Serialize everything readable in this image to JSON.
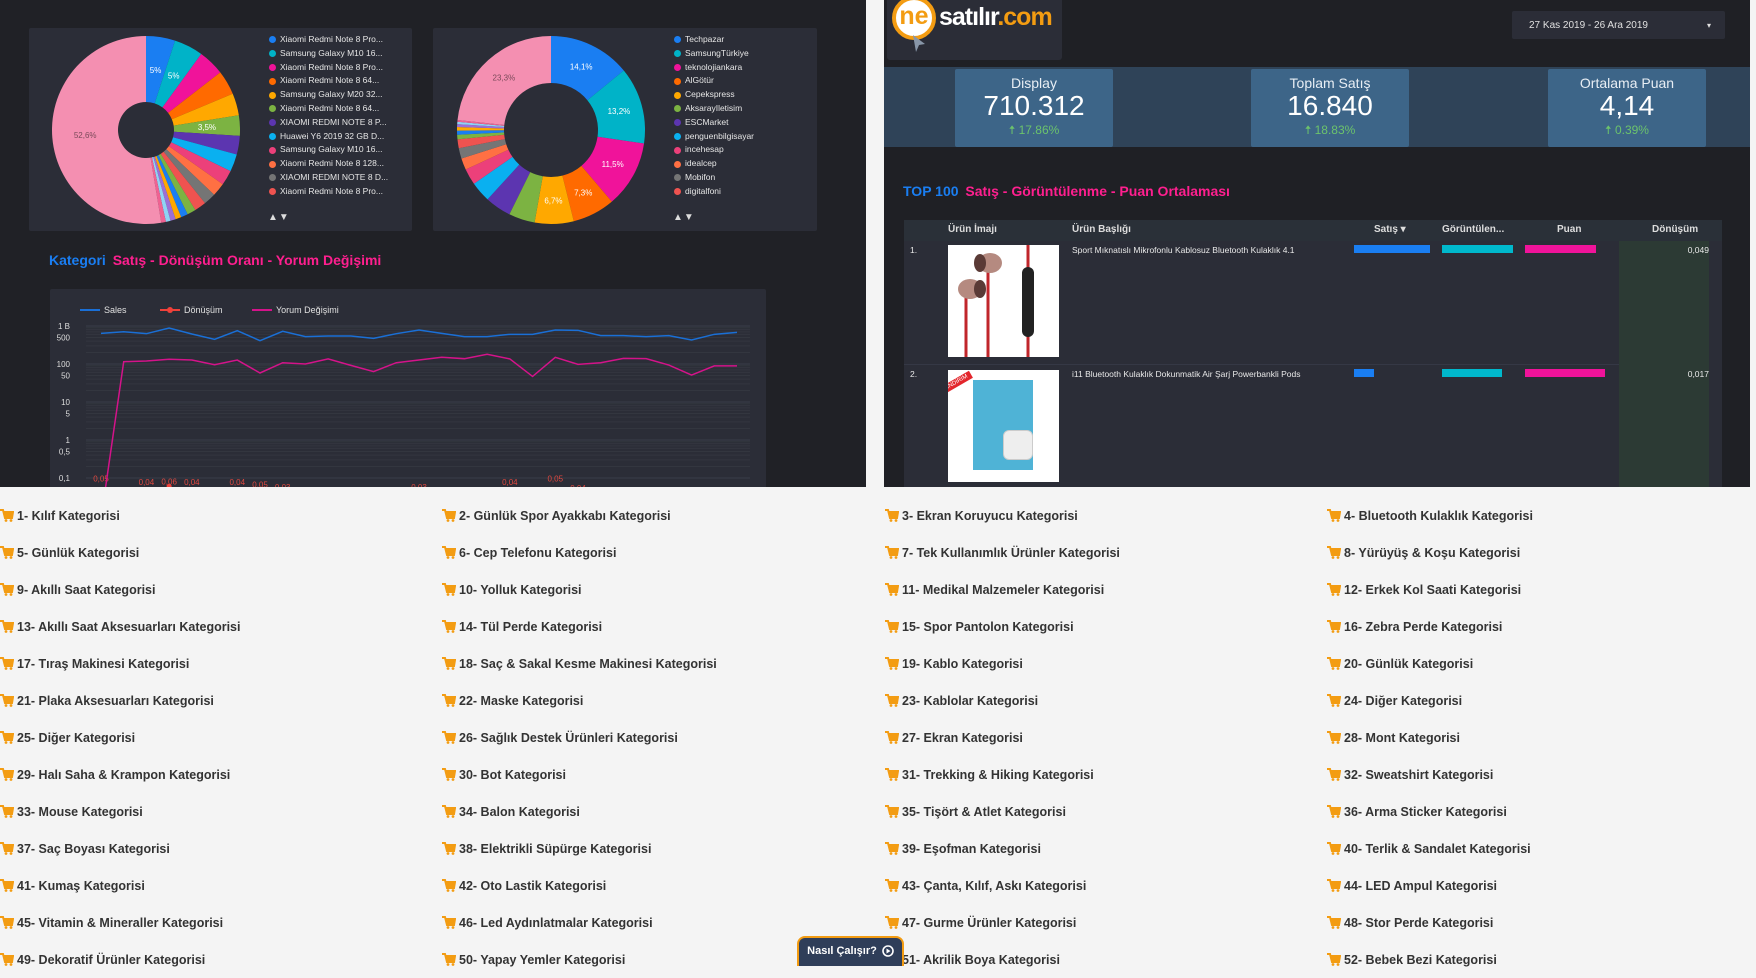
{
  "colors": {
    "blue": "#1a7ef2",
    "pink_title": "#ff1f8f",
    "positive": "#6cc36c",
    "cart": "#f39c12"
  },
  "pie1": {
    "legend": [
      "Xiaomi Redmi Note 8 Pro...",
      "Samsung Galaxy M10 16...",
      "Xiaomi Redmi Note 8 Pro...",
      "Xiaomi Redmi Note 8 64...",
      "Samsung Galaxy M20 32...",
      "Xiaomi Redmi Note 8 64...",
      "XIAOMI REDMI NOTE 8 P...",
      "Huawei Y6 2019 32 GB D...",
      "Samsung Galaxy M10 16...",
      "Xiaomi Redmi Note 8 128...",
      "XIAOMI REDMI NOTE 8 D...",
      "Xiaomi Redmi Note 8 Pro..."
    ],
    "pager": "▲▼"
  },
  "pie2": {
    "legend": [
      "Techpazar",
      "SamsungTürkiye",
      "teknolojiankara",
      "AlGötür",
      "Cepekspress",
      "AksarayIletisim",
      "ESCMarket",
      "penguenbilgisayar",
      "incehesap",
      "idealcep",
      "Mobifon",
      "digitalfoni"
    ],
    "pager": "▲▼"
  },
  "chart_data": [
    {
      "type": "pie",
      "donut": true,
      "values": [
        5,
        5,
        4.5,
        4.2,
        3.8,
        3.5,
        3.2,
        3.0,
        2.6,
        2.3,
        2.1,
        2.0,
        1.5,
        1.2,
        1.0,
        0.9,
        0.8,
        0.8,
        52.6
      ],
      "labels": [
        "5%",
        "5%",
        "",
        "",
        "",
        "3,5%",
        "",
        "",
        "",
        "",
        "",
        "",
        "",
        "",
        "",
        "",
        "",
        "",
        "52,6%"
      ],
      "colors": [
        "#1a7ef2",
        "#00b3c8",
        "#f0139a",
        "#ff6a00",
        "#ffa800",
        "#7cb342",
        "#5c35b0",
        "#0ab0f0",
        "#ec407a",
        "#ff7043",
        "#757575",
        "#ef5350",
        "#7cb342",
        "#1a7ef2",
        "#ffa800",
        "#9c6fd6",
        "#8fd3f4",
        "#f06292",
        "#f48fb1"
      ]
    },
    {
      "type": "pie",
      "donut": true,
      "values": [
        14.1,
        13.2,
        11.5,
        7.3,
        6.7,
        4.5,
        4.5,
        3.5,
        2.8,
        2.0,
        1.8,
        1.5,
        0.8,
        0.7,
        0.6,
        0.5,
        0.4,
        0.3,
        23.3
      ],
      "labels": [
        "14,1%",
        "13,2%",
        "11,5%",
        "7,3%",
        "6,7%",
        "",
        "",
        "",
        "",
        "",
        "",
        "",
        "",
        "",
        "",
        "",
        "",
        "",
        "23,3%"
      ],
      "colors": [
        "#1a7ef2",
        "#00b3c8",
        "#f0139a",
        "#ff6a00",
        "#ffa800",
        "#7cb342",
        "#5c35b0",
        "#0ab0f0",
        "#ec407a",
        "#ff7043",
        "#757575",
        "#ef5350",
        "#7cb342",
        "#1a7ef2",
        "#ffa800",
        "#9c6fd6",
        "#8fd3f4",
        "#f06292",
        "#f48fb1"
      ]
    },
    {
      "type": "line",
      "yscale": "log",
      "yticks": [
        "1 B",
        "500",
        "100",
        "50",
        "10",
        "5",
        "1",
        "0,5",
        "0,1"
      ],
      "ytick_values": [
        1000,
        500,
        100,
        50,
        10,
        5,
        1,
        0.5,
        0.1
      ],
      "series": [
        {
          "name": "Sales",
          "color": "#1a6fd6",
          "values": [
            641,
            708,
            628,
            886,
            616,
            446,
            754,
            411,
            724,
            524,
            546,
            546,
            474,
            628,
            785,
            641,
            524,
            524,
            604,
            604,
            785,
            770,
            557,
            557,
            524,
            557,
            428,
            604,
            681
          ]
        },
        {
          "name": "Dönüşüm",
          "color": "#f0413a",
          "values": [
            0.05,
            0.03,
            0.04,
            0.06,
            0.04,
            0.03,
            0.04,
            0.05,
            0.03,
            null,
            null,
            null,
            null,
            null,
            0.03,
            0.02,
            null,
            0.03,
            0.04,
            0.03,
            0.05,
            0.04,
            null,
            0.02,
            0.02,
            null,
            null,
            null,
            null
          ],
          "labels": [
            "0,05",
            "0,03",
            "0,04",
            "0,06",
            "0,04",
            "0,03",
            "0,04",
            "0,05",
            "0,03",
            "",
            "",
            "",
            "",
            "",
            "0,03",
            "0,02",
            "",
            "0,03",
            "0,04",
            "0,03",
            "0,05",
            "0,04",
            "",
            "0,02",
            "0,02",
            "",
            "",
            "",
            ""
          ]
        },
        {
          "name": "Yorum Değişimi",
          "color": "#d4138a",
          "values": [
            0,
            115,
            120,
            133,
            127,
            96,
            127,
            58,
            108,
            100,
            136,
            92,
            63,
            108,
            127,
            150,
            138,
            180,
            136,
            47,
            150,
            98,
            108,
            141,
            138,
            94,
            51,
            89,
            89
          ]
        }
      ]
    }
  ],
  "left": {
    "title_a": "Kategori",
    "title_b": "Satış - Dönüşüm Oranı - Yorum Değişimi"
  },
  "logo": {
    "ne": "ne",
    "satilir": "satılır",
    "com": ".com"
  },
  "date_range": {
    "value": "27 Kas 2019 - 26 Ara 2019",
    "caret": "▾"
  },
  "kpis": [
    {
      "label": "Display",
      "value": "710.312",
      "change": "17.86%"
    },
    {
      "label": "Toplam Satış",
      "value": "16.840",
      "change": "18.83%"
    },
    {
      "label": "Ortalama Puan",
      "value": "4,14",
      "change": "0.39%"
    }
  ],
  "top": {
    "title_a": "TOP 100",
    "title_b": "Satış - Görüntülenme - Puan Ortalaması"
  },
  "table": {
    "headers": {
      "image": "Ürün İmajı",
      "title": "Ürün Başlığı",
      "sales": "Satış ▾",
      "views": "Görüntülen...",
      "rating": "Puan",
      "conv": "Dönüşüm"
    },
    "rows": [
      {
        "rank": "1.",
        "title": "Sport Mıknatıslı Mikrofonlu Kablosuz Bluetooth Kulaklık 4.1",
        "sales_bar": 1.0,
        "views_bar": 0.89,
        "rating_bar": 0.89,
        "conv": "0,049"
      },
      {
        "rank": "2.",
        "title": "i11 Bluetooth Kulaklık Dokunmatik Air Şarj Powerbankli Pods",
        "sales_bar": 0.26,
        "views_bar": 0.75,
        "rating_bar": 1.0,
        "conv": "0,017",
        "badge": "İNDİRİM"
      }
    ]
  },
  "categories": [
    "1- Kılıf Kategorisi",
    "2- Günlük Spor Ayakkabı Kategorisi",
    "3- Ekran Koruyucu Kategorisi",
    "4- Bluetooth Kulaklık Kategorisi",
    "5- Günlük Kategorisi",
    "6- Cep Telefonu Kategorisi",
    "7- Tek Kullanımlık Ürünler Kategorisi",
    "8- Yürüyüş & Koşu Kategorisi",
    "9- Akıllı Saat Kategorisi",
    "10- Yolluk Kategorisi",
    "11- Medikal Malzemeler Kategorisi",
    "12- Erkek Kol Saati Kategorisi",
    "13- Akıllı Saat Aksesuarları Kategorisi",
    "14- Tül Perde Kategorisi",
    "15- Spor Pantolon Kategorisi",
    "16- Zebra Perde Kategorisi",
    "17- Tıraş Makinesi Kategorisi",
    "18- Saç & Sakal Kesme Makinesi Kategorisi",
    "19- Kablo Kategorisi",
    "20- Günlük Kategorisi",
    "21- Plaka Aksesuarları Kategorisi",
    "22- Maske Kategorisi",
    "23- Kablolar Kategorisi",
    "24- Diğer Kategorisi",
    "25- Diğer Kategorisi",
    "26- Sağlık Destek Ürünleri Kategorisi",
    "27- Ekran Kategorisi",
    "28- Mont Kategorisi",
    "29- Halı Saha & Krampon Kategorisi",
    "30- Bot Kategorisi",
    "31- Trekking & Hiking Kategorisi",
    "32- Sweatshirt Kategorisi",
    "33- Mouse Kategorisi",
    "34- Balon Kategorisi",
    "35- Tişört & Atlet Kategorisi",
    "36- Arma Sticker Kategorisi",
    "37- Saç Boyası Kategorisi",
    "38- Elektrikli Süpürge Kategorisi",
    "39- Eşofman Kategorisi",
    "40- Terlik & Sandalet Kategorisi",
    "41- Kumaş Kategorisi",
    "42- Oto Lastik Kategorisi",
    "43- Çanta, Kılıf, Askı Kategorisi",
    "44- LED Ampul Kategorisi",
    "45- Vitamin & Mineraller Kategorisi",
    "46- Led Aydınlatmalar Kategorisi",
    "47- Gurme Ürünler Kategorisi",
    "48- Stor Perde Kategorisi",
    "49- Dekoratif Ürünler Kategorisi",
    "50- Yapay Yemler Kategorisi",
    "51- Akrilik Boya Kategorisi",
    "52- Bebek Bezi Kategorisi"
  ],
  "howto": {
    "label": "Nasıl Çalışır?"
  }
}
